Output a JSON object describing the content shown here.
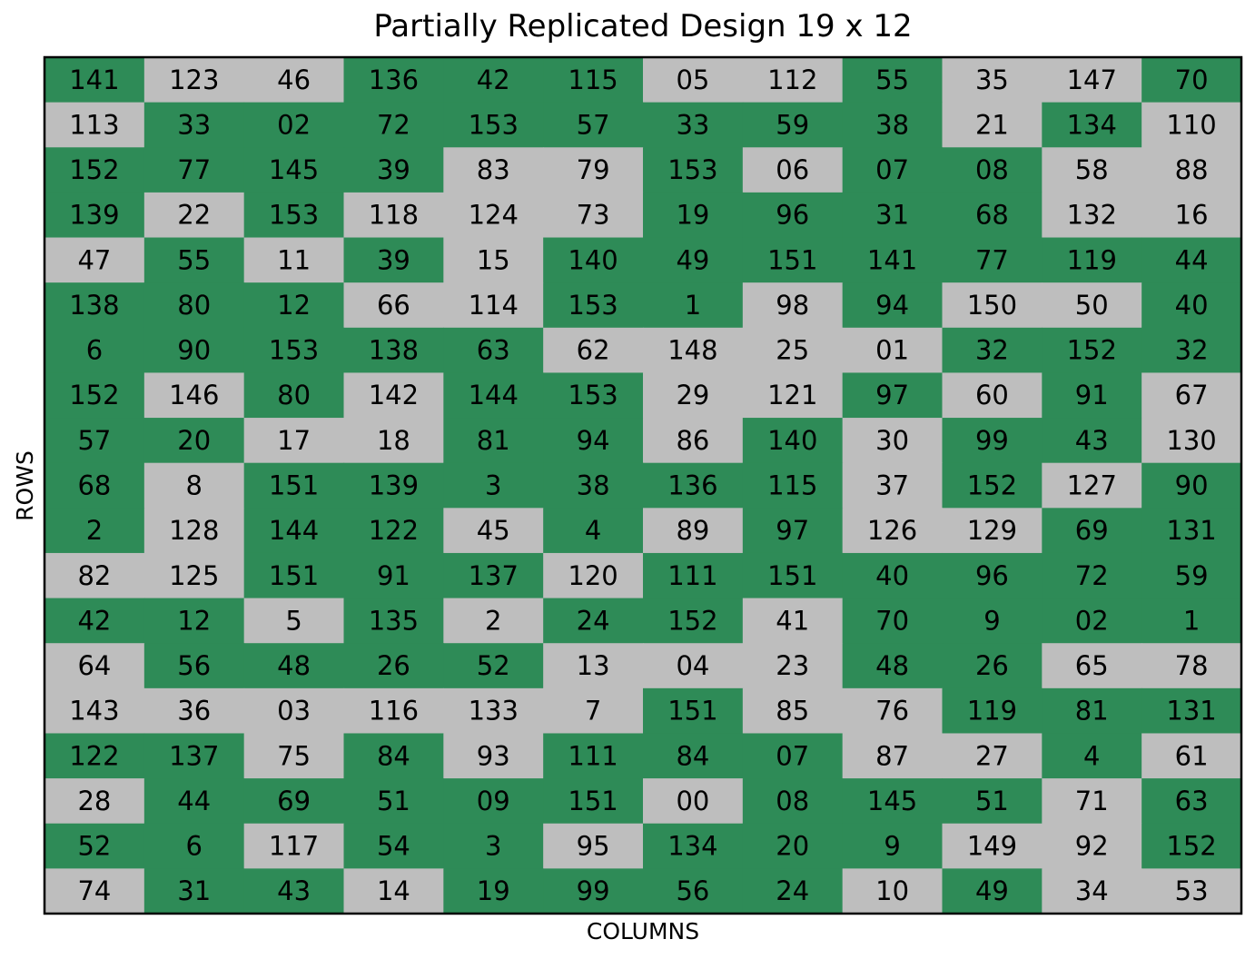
{
  "chart_data": {
    "type": "heatmap",
    "title": "Partially Replicated Design 19 x 12",
    "xlabel": "COLUMNS",
    "ylabel": "ROWS",
    "n_rows": 19,
    "n_cols": 12,
    "colors": {
      "replicated": "#2e8b57",
      "unreplicated": "#bebebe",
      "border": "#000000"
    },
    "labels": [
      [
        "141",
        "123",
        "46",
        "136",
        "42",
        "115",
        "05",
        "112",
        "55",
        "35",
        "147",
        "70"
      ],
      [
        "113",
        "33",
        "02",
        "72",
        "153",
        "57",
        "33",
        "59",
        "38",
        "21",
        "134",
        "110"
      ],
      [
        "152",
        "77",
        "145",
        "39",
        "83",
        "79",
        "153",
        "06",
        "07",
        "08",
        "58",
        "88"
      ],
      [
        "139",
        "22",
        "153",
        "118",
        "124",
        "73",
        "19",
        "96",
        "31",
        "68",
        "132",
        "16"
      ],
      [
        "47",
        "55",
        "11",
        "39",
        "15",
        "140",
        "49",
        "151",
        "141",
        "77",
        "119",
        "44"
      ],
      [
        "138",
        "80",
        "12",
        "66",
        "114",
        "153",
        "1",
        "98",
        "94",
        "150",
        "50",
        "40"
      ],
      [
        "6",
        "90",
        "153",
        "138",
        "63",
        "62",
        "148",
        "25",
        "01",
        "32",
        "152",
        "32"
      ],
      [
        "152",
        "146",
        "80",
        "142",
        "144",
        "153",
        "29",
        "121",
        "97",
        "60",
        "91",
        "67"
      ],
      [
        "57",
        "20",
        "17",
        "18",
        "81",
        "94",
        "86",
        "140",
        "30",
        "99",
        "43",
        "130"
      ],
      [
        "68",
        "8",
        "151",
        "139",
        "3",
        "38",
        "136",
        "115",
        "37",
        "152",
        "127",
        "90"
      ],
      [
        "2",
        "128",
        "144",
        "122",
        "45",
        "4",
        "89",
        "97",
        "126",
        "129",
        "69",
        "131"
      ],
      [
        "82",
        "125",
        "151",
        "91",
        "137",
        "120",
        "111",
        "151",
        "40",
        "96",
        "72",
        "59"
      ],
      [
        "42",
        "12",
        "5",
        "135",
        "2",
        "24",
        "152",
        "41",
        "70",
        "9",
        "02",
        "1"
      ],
      [
        "64",
        "56",
        "48",
        "26",
        "52",
        "13",
        "04",
        "23",
        "48",
        "26",
        "65",
        "78"
      ],
      [
        "143",
        "36",
        "03",
        "116",
        "133",
        "7",
        "151",
        "85",
        "76",
        "119",
        "81",
        "131"
      ],
      [
        "122",
        "137",
        "75",
        "84",
        "93",
        "111",
        "84",
        "07",
        "87",
        "27",
        "4",
        "61"
      ],
      [
        "28",
        "44",
        "69",
        "51",
        "09",
        "151",
        "00",
        "08",
        "145",
        "51",
        "71",
        "63"
      ],
      [
        "52",
        "6",
        "117",
        "54",
        "3",
        "95",
        "134",
        "20",
        "9",
        "149",
        "92",
        "152"
      ],
      [
        "74",
        "31",
        "43",
        "14",
        "19",
        "99",
        "56",
        "24",
        "10",
        "49",
        "34",
        "53"
      ]
    ],
    "replicated": [
      [
        1,
        0,
        0,
        1,
        1,
        1,
        0,
        0,
        1,
        0,
        0,
        1
      ],
      [
        0,
        1,
        1,
        1,
        1,
        1,
        1,
        1,
        1,
        0,
        1,
        0
      ],
      [
        1,
        1,
        1,
        1,
        0,
        0,
        1,
        0,
        1,
        1,
        0,
        0
      ],
      [
        1,
        0,
        1,
        0,
        0,
        0,
        1,
        1,
        1,
        1,
        0,
        0
      ],
      [
        0,
        1,
        0,
        1,
        0,
        1,
        1,
        1,
        1,
        1,
        1,
        1
      ],
      [
        1,
        1,
        1,
        0,
        0,
        1,
        1,
        0,
        1,
        0,
        0,
        1
      ],
      [
        1,
        1,
        1,
        1,
        1,
        0,
        0,
        0,
        0,
        1,
        1,
        1
      ],
      [
        1,
        0,
        1,
        0,
        1,
        1,
        0,
        0,
        1,
        0,
        1,
        0
      ],
      [
        1,
        1,
        0,
        0,
        1,
        1,
        0,
        1,
        0,
        1,
        1,
        0
      ],
      [
        1,
        0,
        1,
        1,
        1,
        1,
        1,
        1,
        0,
        1,
        0,
        1
      ],
      [
        1,
        0,
        1,
        1,
        0,
        1,
        0,
        1,
        0,
        0,
        1,
        1
      ],
      [
        0,
        0,
        1,
        1,
        1,
        0,
        1,
        1,
        1,
        1,
        1,
        1
      ],
      [
        1,
        1,
        0,
        1,
        0,
        1,
        1,
        0,
        1,
        1,
        1,
        1
      ],
      [
        0,
        1,
        1,
        1,
        1,
        0,
        0,
        0,
        1,
        1,
        0,
        0
      ],
      [
        0,
        0,
        0,
        0,
        0,
        0,
        1,
        0,
        0,
        1,
        1,
        1
      ],
      [
        1,
        1,
        0,
        1,
        0,
        1,
        1,
        1,
        0,
        0,
        1,
        0
      ],
      [
        0,
        1,
        1,
        1,
        1,
        1,
        0,
        1,
        1,
        1,
        0,
        1
      ],
      [
        1,
        1,
        0,
        1,
        1,
        0,
        1,
        1,
        1,
        0,
        0,
        1
      ],
      [
        0,
        1,
        1,
        0,
        1,
        1,
        1,
        1,
        0,
        1,
        0,
        0
      ]
    ]
  }
}
